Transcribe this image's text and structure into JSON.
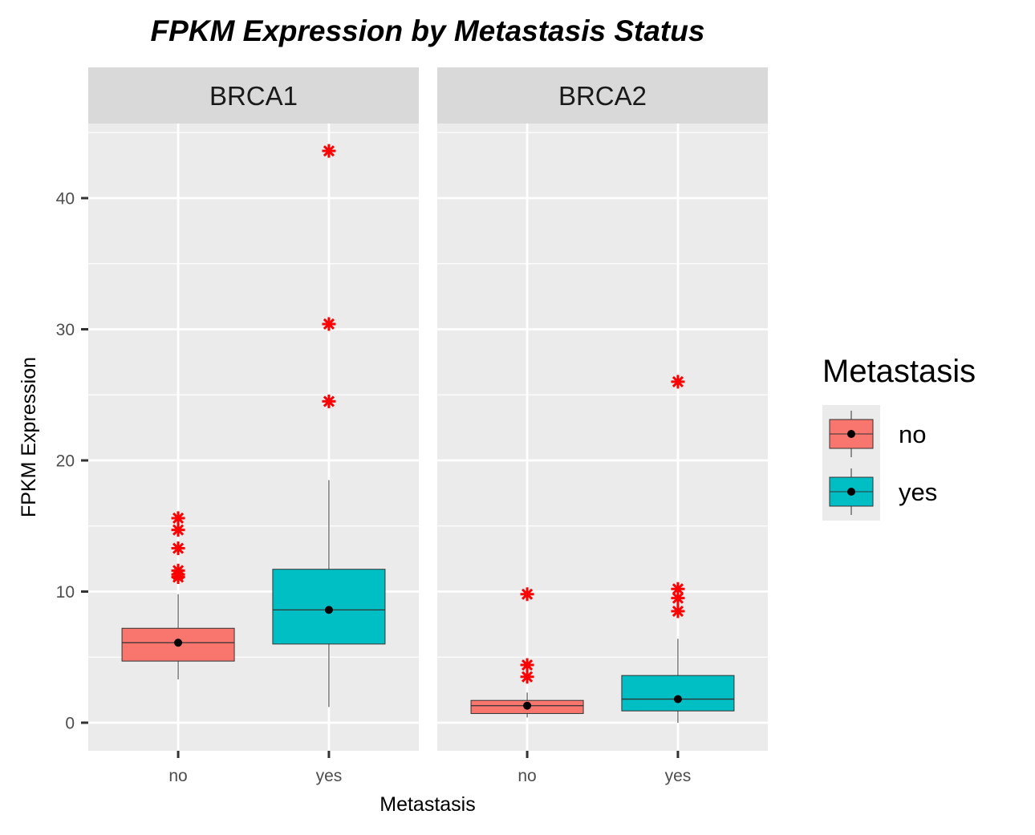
{
  "chart_data": {
    "type": "boxplot",
    "title": "FPKM Expression by Metastasis Status",
    "xlabel": "Metastasis",
    "ylabel": "FPKM Expression",
    "ylim": [
      -2,
      45
    ],
    "yticks": [
      0,
      10,
      20,
      30,
      40
    ],
    "categories": [
      "no",
      "yes"
    ],
    "grid": true,
    "legend": {
      "title": "Metastasis",
      "position": "right",
      "entries": [
        {
          "label": "no",
          "color": "#F8766D"
        },
        {
          "label": "yes",
          "color": "#00BFC4"
        }
      ]
    },
    "outlier_color": "#FF0000",
    "facets": [
      {
        "name": "BRCA1",
        "groups": [
          {
            "category": "no",
            "color": "#F8766D",
            "whisker_low": 3.3,
            "q1": 4.7,
            "median": 6.1,
            "q3": 7.2,
            "whisker_high": 9.8,
            "mean": 6.1,
            "outliers": [
              15.6,
              14.7,
              13.3,
              11.6,
              11.3,
              11.1
            ]
          },
          {
            "category": "yes",
            "color": "#00BFC4",
            "whisker_low": 1.2,
            "q1": 6.0,
            "median": 8.6,
            "q3": 11.7,
            "whisker_high": 18.5,
            "mean": 8.6,
            "outliers": [
              43.6,
              30.4,
              24.5
            ]
          }
        ]
      },
      {
        "name": "BRCA2",
        "groups": [
          {
            "category": "no",
            "color": "#F8766D",
            "whisker_low": 0.4,
            "q1": 0.7,
            "median": 1.3,
            "q3": 1.7,
            "whisker_high": 2.3,
            "mean": 1.3,
            "outliers": [
              9.8,
              4.4,
              3.5
            ]
          },
          {
            "category": "yes",
            "color": "#00BFC4",
            "whisker_low": 0.0,
            "q1": 0.9,
            "median": 1.8,
            "q3": 3.6,
            "whisker_high": 6.4,
            "mean": 1.8,
            "outliers": [
              26.0,
              10.2,
              9.5,
              8.5
            ]
          }
        ]
      }
    ]
  }
}
